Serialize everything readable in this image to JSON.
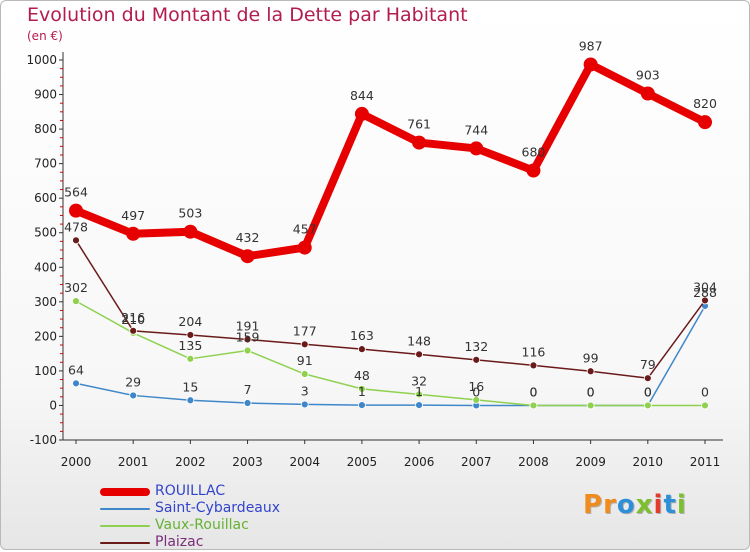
{
  "header": {
    "title": "Evolution du Montant de la Dette par Habitant",
    "subtitle": "(en €)"
  },
  "logo": {
    "text": "Proxiti",
    "letters": [
      {
        "ch": "P",
        "color": "#f08c1e"
      },
      {
        "ch": "r",
        "color": "#f08c1e"
      },
      {
        "ch": "o",
        "color": "#2d8fd8"
      },
      {
        "ch": "x",
        "color": "#7cbf2e"
      },
      {
        "ch": "i",
        "color": "#e23a2d"
      },
      {
        "ch": "t",
        "color": "#2d8fd8"
      },
      {
        "ch": "i",
        "color": "#7cbf2e"
      }
    ]
  },
  "chart_data": {
    "type": "line",
    "title": "Evolution du Montant de la Dette par Habitant",
    "subtitle": "(en €)",
    "xlabel": "",
    "ylabel": "",
    "x": [
      "2000",
      "2001",
      "2002",
      "2003",
      "2004",
      "2005",
      "2006",
      "2007",
      "2008",
      "2009",
      "2010",
      "2011"
    ],
    "ylim": [
      -100,
      1000
    ],
    "yticks": [
      -100,
      0,
      100,
      200,
      300,
      400,
      500,
      600,
      700,
      800,
      900,
      1000
    ],
    "grid": false,
    "legend_position": "bottom-left",
    "series": [
      {
        "name": "ROUILLAC",
        "color": "#e60000",
        "values": [
          564,
          497,
          503,
          432,
          457,
          844,
          761,
          744,
          680,
          987,
          903,
          820
        ]
      },
      {
        "name": "Saint-Cybardeaux",
        "color": "#3f87c8",
        "values": [
          64,
          29,
          15,
          7,
          3,
          1,
          1,
          0,
          0,
          0,
          0,
          288
        ]
      },
      {
        "name": "Vaux-Rouillac",
        "color": "#8fd14f",
        "values": [
          302,
          210,
          135,
          159,
          91,
          48,
          32,
          16,
          0,
          0,
          0,
          0
        ]
      },
      {
        "name": "Plaizac",
        "color": "#6b1a1a",
        "values": [
          478,
          216,
          204,
          191,
          177,
          163,
          148,
          132,
          116,
          99,
          79,
          304
        ]
      }
    ]
  }
}
